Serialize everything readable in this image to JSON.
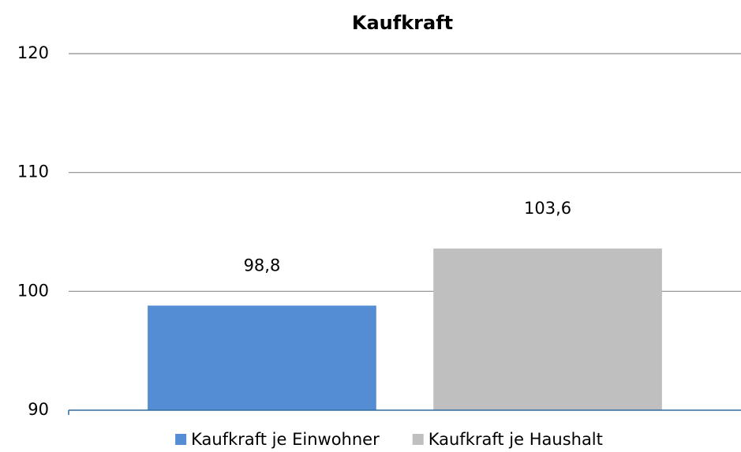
{
  "chart_data": {
    "type": "bar",
    "title": "Kaufkraft",
    "categories": [
      null
    ],
    "series": [
      {
        "name": "Kaufkraft je Einwohner",
        "color": "#548dd4",
        "values": [
          98.8
        ],
        "value_labels": [
          "98,8"
        ]
      },
      {
        "name": "Kaufkraft je Haushalt",
        "color": "#bfbfbf",
        "values": [
          103.6
        ],
        "value_labels": [
          "103,6"
        ]
      }
    ],
    "ylim": [
      90,
      120
    ],
    "yticks": [
      90,
      100,
      110,
      120
    ],
    "grid": true,
    "legend": "bottom"
  }
}
